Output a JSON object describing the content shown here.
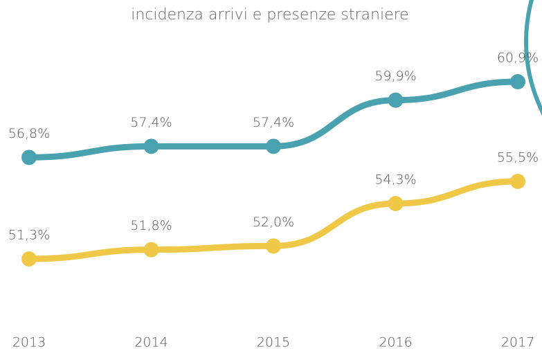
{
  "chart_data": {
    "type": "line",
    "title": "incidenza arrivi e presenze straniere",
    "categories": [
      "2013",
      "2014",
      "2015",
      "2016",
      "2017"
    ],
    "series": [
      {
        "color": "#4aa2b0",
        "values": [
          56.8,
          57.4,
          57.4,
          59.9,
          60.9
        ],
        "value_labels": [
          "56,8%",
          "57,4%",
          "57,4%",
          "59,9%",
          "60,9%"
        ]
      },
      {
        "color": "#f0c847",
        "values": [
          51.3,
          51.8,
          52.0,
          54.3,
          55.5
        ],
        "value_labels": [
          "51,3%",
          "51,8%",
          "52,0%",
          "54,3%",
          "55,5%"
        ]
      }
    ]
  }
}
